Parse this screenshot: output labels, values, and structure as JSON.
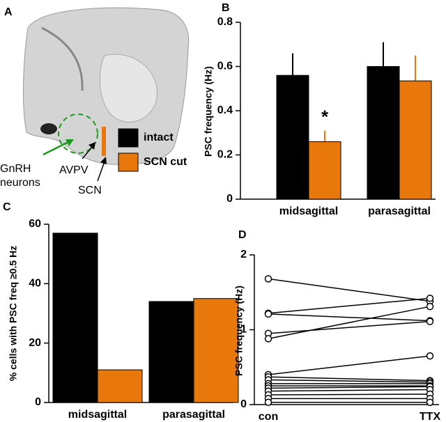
{
  "image_panel": {
    "panel_label": "A",
    "labels": {
      "gnrh": [
        "GnRH",
        "neurons"
      ],
      "avpv": "AVPV",
      "scn": "SCN"
    }
  },
  "chart_data": [
    {
      "type": "bar",
      "panel_label": "B",
      "ylabel": "PSC frequency (Hz)",
      "categories": [
        "midsagittal",
        "parasagittal"
      ],
      "series": [
        {
          "name": "intact",
          "color": "#000000",
          "values": [
            0.56,
            0.6
          ],
          "errors": [
            0.1,
            0.11
          ]
        },
        {
          "name": "SCN cut",
          "color": "#e8780c",
          "values": [
            0.26,
            0.535
          ],
          "errors": [
            0.05,
            0.115
          ]
        }
      ],
      "annotations": [
        {
          "text": "*",
          "category": 0,
          "series": 1
        }
      ],
      "ylim": [
        0,
        0.8
      ],
      "yticks": [
        0,
        0.2,
        0.4,
        0.6,
        0.8
      ]
    },
    {
      "type": "bar",
      "panel_label": "C",
      "ylabel": "% cells with PSC freq ≥0.5 Hz",
      "categories": [
        "midsagittal",
        "parasagittal"
      ],
      "series": [
        {
          "name": "intact",
          "color": "#000000",
          "values": [
            57,
            34
          ]
        },
        {
          "name": "SCN cut",
          "color": "#e8780c",
          "values": [
            11,
            35
          ]
        }
      ],
      "ylim": [
        0,
        60
      ],
      "yticks": [
        0,
        20,
        40,
        60
      ],
      "legend": true
    },
    {
      "type": "paired",
      "panel_label": "D",
      "ylabel": "PSC frequency (Hz)",
      "color": "#000000",
      "categories": [
        "con",
        "TTX"
      ],
      "series": [
        {
          "values": [
            1.68,
            1.38
          ]
        },
        {
          "values": [
            1.22,
            1.42
          ]
        },
        {
          "values": [
            1.21,
            1.12
          ]
        },
        {
          "values": [
            0.95,
            1.11
          ]
        },
        {
          "values": [
            0.88,
            1.31
          ]
        },
        {
          "values": [
            0.4,
            0.65
          ]
        },
        {
          "values": [
            0.37,
            0.32
          ]
        },
        {
          "values": [
            0.33,
            0.3
          ]
        },
        {
          "values": [
            0.28,
            0.28
          ]
        },
        {
          "values": [
            0.25,
            0.25
          ]
        },
        {
          "values": [
            0.22,
            0.24
          ]
        },
        {
          "values": [
            0.18,
            0.2
          ]
        },
        {
          "values": [
            0.13,
            0.14
          ]
        },
        {
          "values": [
            0.08,
            0.08
          ]
        },
        {
          "values": [
            0.03,
            0.03
          ]
        }
      ],
      "ylim": [
        0,
        2
      ],
      "yticks": [
        0,
        1,
        2
      ]
    }
  ]
}
